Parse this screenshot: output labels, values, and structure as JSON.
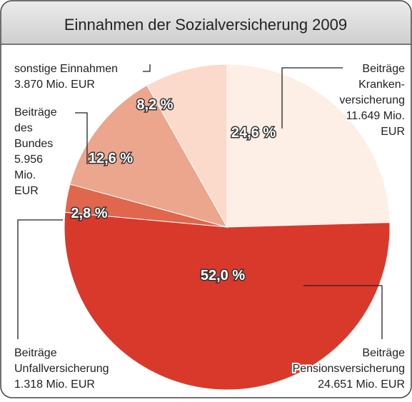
{
  "chart_data": {
    "type": "pie",
    "title": "Einnahmen der Sozialversicherung 2009",
    "categories": [
      [
        "Beiträge",
        "Kranken-",
        "versicherung",
        "11.649 Mio.",
        "EUR"
      ],
      [
        "Beiträge",
        "Pensionsversicherung",
        "24.651 Mio. EUR"
      ],
      [
        "Beiträge",
        "Unfallversicherung",
        "1.318 Mio. EUR"
      ],
      [
        "Beiträge",
        "des",
        "Bundes",
        "5.956",
        "Mio.",
        "EUR"
      ],
      [
        "sonstige Einnahmen",
        "3.870 Mio. EUR"
      ]
    ],
    "values": [
      24.6,
      52.0,
      2.8,
      12.6,
      8.2
    ],
    "value_labels": [
      "24,6 %",
      "52,0 %",
      "2,8 %",
      "12,6 %",
      "8,2 %"
    ],
    "colors": [
      "#fdeee6",
      "#d9392b",
      "#e0664e",
      "#eca68e",
      "#fbd9cb"
    ]
  }
}
